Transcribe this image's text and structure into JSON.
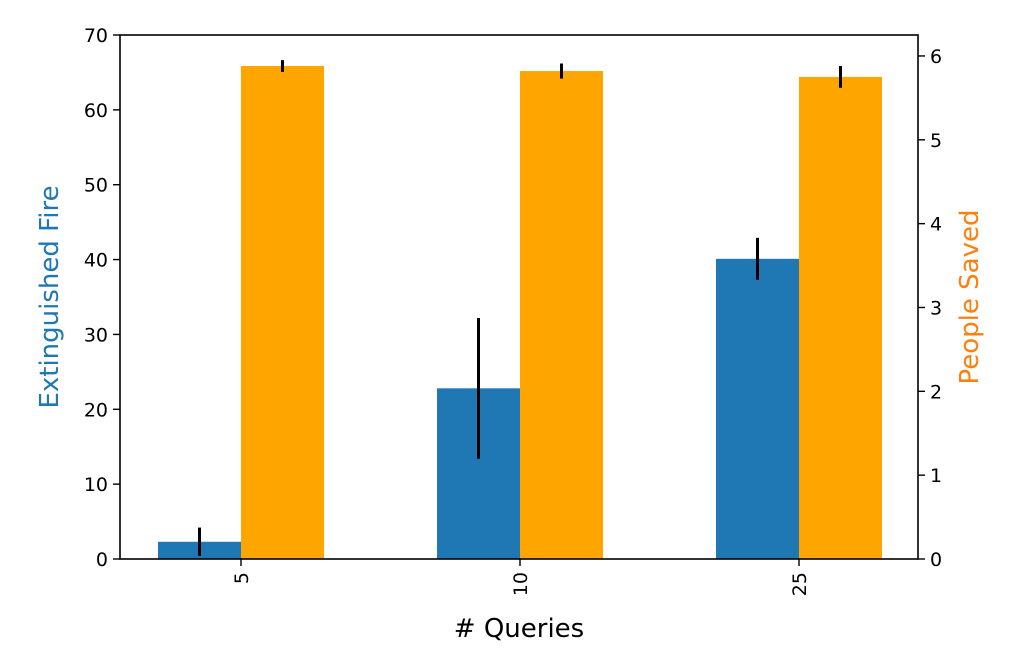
{
  "chart_data": {
    "type": "bar",
    "categories": [
      "5",
      "10",
      "25"
    ],
    "xlabel": "# Queries",
    "left_axis": {
      "label": "Extinguished Fire",
      "color": "#1f77b4",
      "ylim": [
        0,
        70
      ],
      "ticks": [
        0,
        10,
        20,
        30,
        40,
        50,
        60,
        70
      ]
    },
    "right_axis": {
      "label": "People Saved",
      "color": "#ff7f0e",
      "ylim": [
        0,
        6.25
      ],
      "ticks": [
        0,
        1,
        2,
        3,
        4,
        5,
        6
      ]
    },
    "series": [
      {
        "axis": "left",
        "color": "#1f77b4",
        "values": [
          2.3,
          22.8,
          40.1
        ],
        "errors": [
          1.9,
          9.4,
          2.8
        ]
      },
      {
        "axis": "right",
        "color": "#ffa500",
        "values": [
          5.88,
          5.82,
          5.75
        ],
        "errors": [
          0.07,
          0.09,
          0.13
        ]
      }
    ],
    "x_tick_rotation": "vertical",
    "grid": false,
    "legend": "none"
  }
}
